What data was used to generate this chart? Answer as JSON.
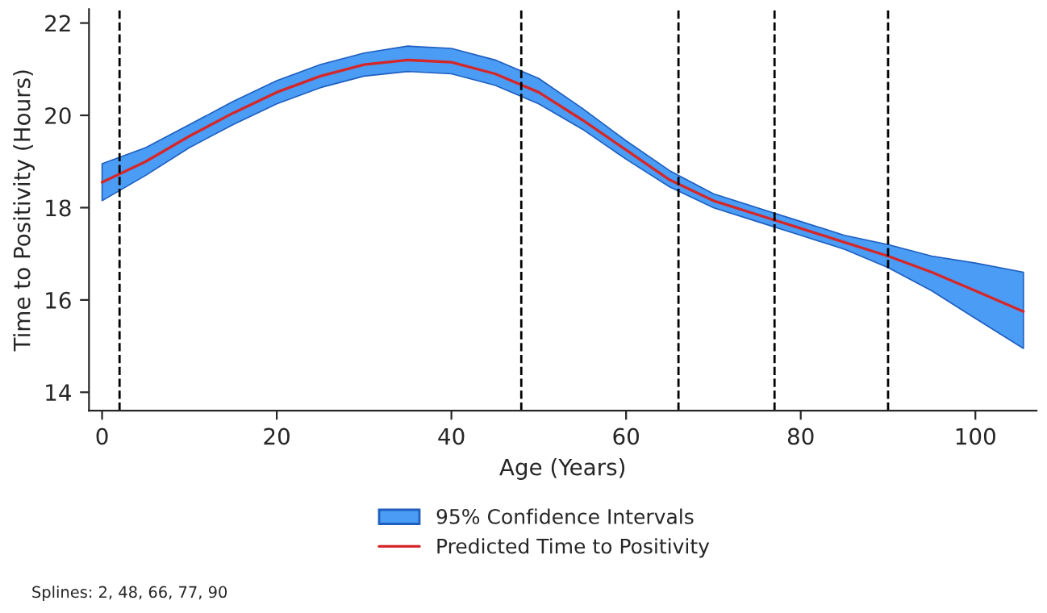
{
  "chart_data": {
    "type": "line",
    "xlabel": "Age (Years)",
    "ylabel": "Time to Positivity (Hours)",
    "x": [
      0,
      5,
      10,
      15,
      20,
      25,
      30,
      35,
      40,
      45,
      50,
      55,
      60,
      65,
      70,
      75,
      80,
      85,
      90,
      95,
      100,
      105.5
    ],
    "series": [
      {
        "name": "Predicted Time to Positivity",
        "color": "#d62728",
        "values": [
          18.55,
          19.0,
          19.55,
          20.05,
          20.5,
          20.85,
          21.1,
          21.2,
          21.15,
          20.9,
          20.5,
          19.9,
          19.25,
          18.6,
          18.15,
          17.85,
          17.55,
          17.25,
          16.95,
          16.6,
          16.2,
          15.75
        ],
        "lower": [
          18.15,
          18.7,
          19.3,
          19.8,
          20.25,
          20.6,
          20.85,
          20.95,
          20.9,
          20.65,
          20.25,
          19.7,
          19.05,
          18.45,
          18.0,
          17.7,
          17.4,
          17.1,
          16.7,
          16.2,
          15.6,
          14.95
        ],
        "upper": [
          18.95,
          19.3,
          19.8,
          20.3,
          20.75,
          21.1,
          21.35,
          21.5,
          21.45,
          21.2,
          20.8,
          20.15,
          19.45,
          18.8,
          18.3,
          18.0,
          17.7,
          17.4,
          17.2,
          16.95,
          16.8,
          16.6
        ]
      }
    ],
    "xlim": [
      -1.5,
      107
    ],
    "ylim": [
      13.6,
      22.3
    ],
    "xticks": [
      0,
      20,
      40,
      60,
      80,
      100
    ],
    "yticks": [
      14,
      16,
      18,
      20,
      22
    ],
    "ref_lines": [
      {
        "axis": "x",
        "value": 2,
        "line_style": "dashed",
        "color": "#000000"
      },
      {
        "axis": "x",
        "value": 48,
        "line_style": "dashed",
        "color": "#000000"
      },
      {
        "axis": "x",
        "value": 66,
        "line_style": "dashed",
        "color": "#000000"
      },
      {
        "axis": "x",
        "value": 77,
        "line_style": "dashed",
        "color": "#000000"
      },
      {
        "axis": "x",
        "value": 90,
        "line_style": "dashed",
        "color": "#000000"
      }
    ],
    "annotations": [
      "95% Confidence Intervals",
      "Splines: 2, 48, 66, 77, 90"
    ],
    "grid": false,
    "legend": "bottom",
    "marker": "none",
    "line_style": "solid"
  }
}
